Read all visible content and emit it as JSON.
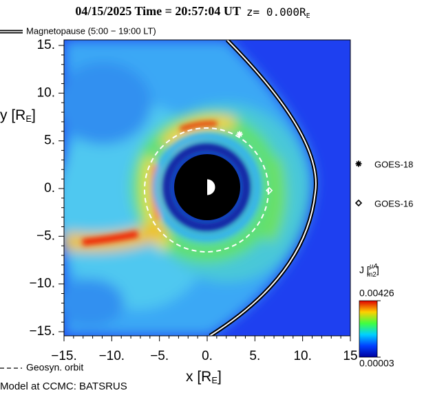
{
  "chart_data": {
    "type": "field-map",
    "title": "04/15/2025 Time = 20:57:04 UT",
    "title_z": "z= 0.000R",
    "title_z_sub": "E",
    "magnetopause_label": "Magnetopause (5:00 − 19:00 LT)",
    "orbit_label": "Geosyn. orbit",
    "footer": "Model at CCMC: BATSRUS",
    "x_label": "x [R",
    "x_label_sub": "E",
    "x_label_end": "]",
    "y_label": "y [R",
    "y_label_sub": "E",
    "y_label_end": "]",
    "xlim": [
      -15,
      15
    ],
    "ylim": [
      -15,
      15
    ],
    "xticks": [
      {
        "value": -15,
        "label": "−15."
      },
      {
        "value": -10,
        "label": "−10."
      },
      {
        "value": -5,
        "label": "−5."
      },
      {
        "value": 0,
        "label": "0."
      },
      {
        "value": 5,
        "label": "5."
      },
      {
        "value": 10,
        "label": "10."
      },
      {
        "value": 15,
        "label": "15"
      }
    ],
    "yticks": [
      {
        "value": 15,
        "label": "15."
      },
      {
        "value": 10,
        "label": "10."
      },
      {
        "value": 5,
        "label": "5."
      },
      {
        "value": 0,
        "label": "0."
      },
      {
        "value": -5,
        "label": "−5."
      },
      {
        "value": -10,
        "label": "−10."
      },
      {
        "value": -15,
        "label": "−15."
      }
    ],
    "satellites": [
      {
        "name": "GOES-18",
        "x": 3.4,
        "y": 5.7,
        "marker": "star",
        "color": "#ffffff"
      },
      {
        "name": "GOES-16",
        "x": 6.5,
        "y": -0.2,
        "marker": "diamond",
        "color": "#ffffff"
      }
    ],
    "colorbar_label": "J [",
    "colorbar_unit_num": "μA",
    "colorbar_unit_den": "m2",
    "colorbar_label_end": "]",
    "clim": [
      3e-05,
      0.00426
    ],
    "cticks": [
      0.00426,
      3e-05
    ]
  }
}
